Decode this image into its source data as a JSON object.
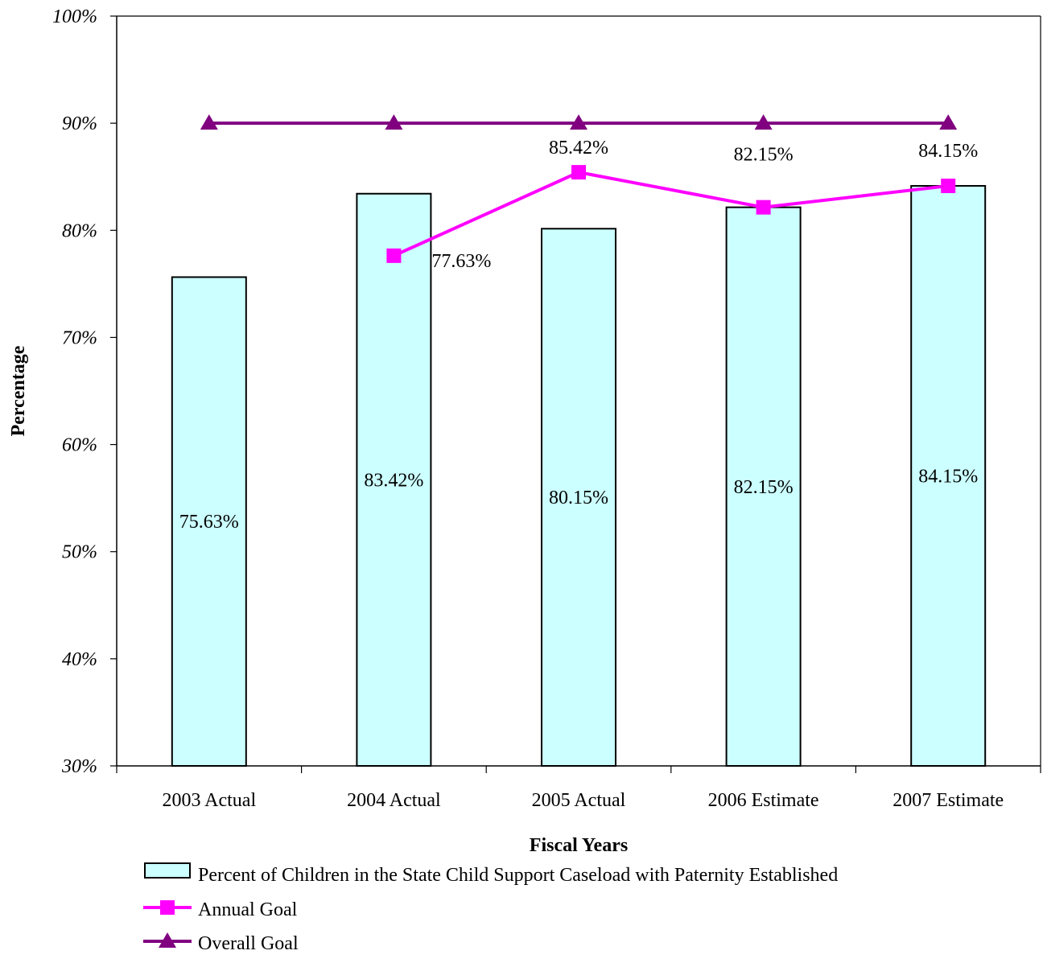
{
  "chart_data": {
    "type": "bar",
    "title": "",
    "xlabel": "Fiscal Years",
    "ylabel": "Percentage",
    "ylim": [
      30,
      100
    ],
    "y_ticks": [
      "30%",
      "40%",
      "50%",
      "60%",
      "70%",
      "80%",
      "90%",
      "100%"
    ],
    "grid": false,
    "legend_position": "bottom",
    "categories": [
      "2003 Actual",
      "2004 Actual",
      "2005 Actual",
      "2006 Estimate",
      "2007 Estimate"
    ],
    "series": [
      {
        "name": "Percent of Children in the State Child Support Caseload with Paternity Established",
        "kind": "bar",
        "color": "#CCFFFF",
        "values": [
          75.63,
          83.42,
          80.15,
          82.15,
          84.15
        ],
        "labels": [
          "75.63%",
          "83.42%",
          "80.15%",
          "82.15%",
          "84.15%"
        ]
      },
      {
        "name": "Annual Goal",
        "kind": "line",
        "marker": "square",
        "color": "#FF00FF",
        "values": [
          null,
          77.63,
          85.42,
          82.15,
          84.15
        ],
        "labels": [
          null,
          "77.63%",
          "85.42%",
          "82.15%",
          "84.15%"
        ]
      },
      {
        "name": "Overall Goal",
        "kind": "line",
        "marker": "triangle",
        "color": "#800080",
        "values": [
          90,
          90,
          90,
          90,
          90
        ]
      }
    ]
  }
}
